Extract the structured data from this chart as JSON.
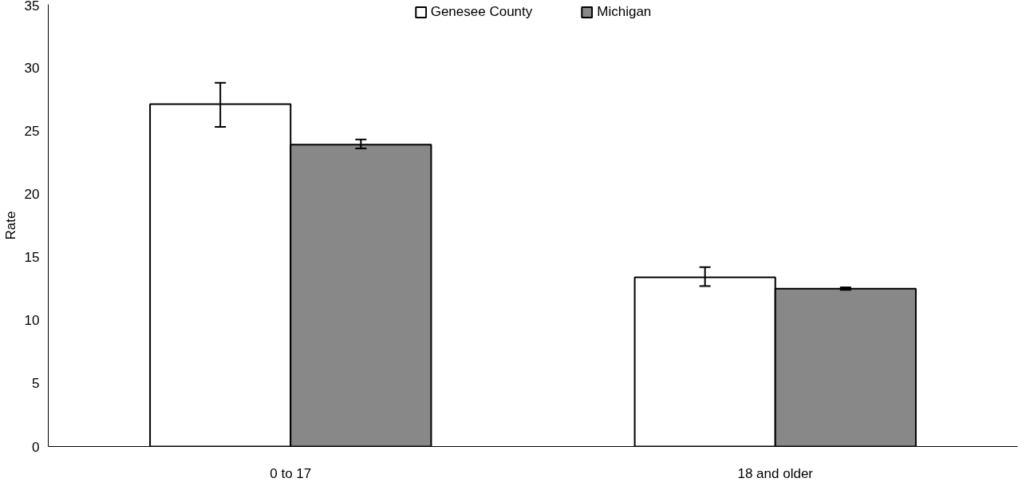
{
  "chart_data": {
    "type": "bar",
    "ylabel": "Rate",
    "categories": [
      "0 to 17",
      "18 and older"
    ],
    "series": [
      {
        "name": "Genesee County",
        "color": "#ffffff",
        "values": [
          27.1,
          13.4
        ],
        "errors": [
          [
            25.3,
            28.8
          ],
          [
            12.7,
            14.2
          ]
        ]
      },
      {
        "name": "Michigan",
        "color": "#888888",
        "values": [
          23.9,
          12.5
        ],
        "errors": [
          [
            23.6,
            24.3
          ],
          [
            12.4,
            12.6
          ]
        ]
      }
    ],
    "ylim": [
      0,
      35
    ],
    "yticks": [
      0,
      5,
      10,
      15,
      20,
      25,
      30,
      35
    ],
    "grid": false,
    "legend": "top"
  }
}
